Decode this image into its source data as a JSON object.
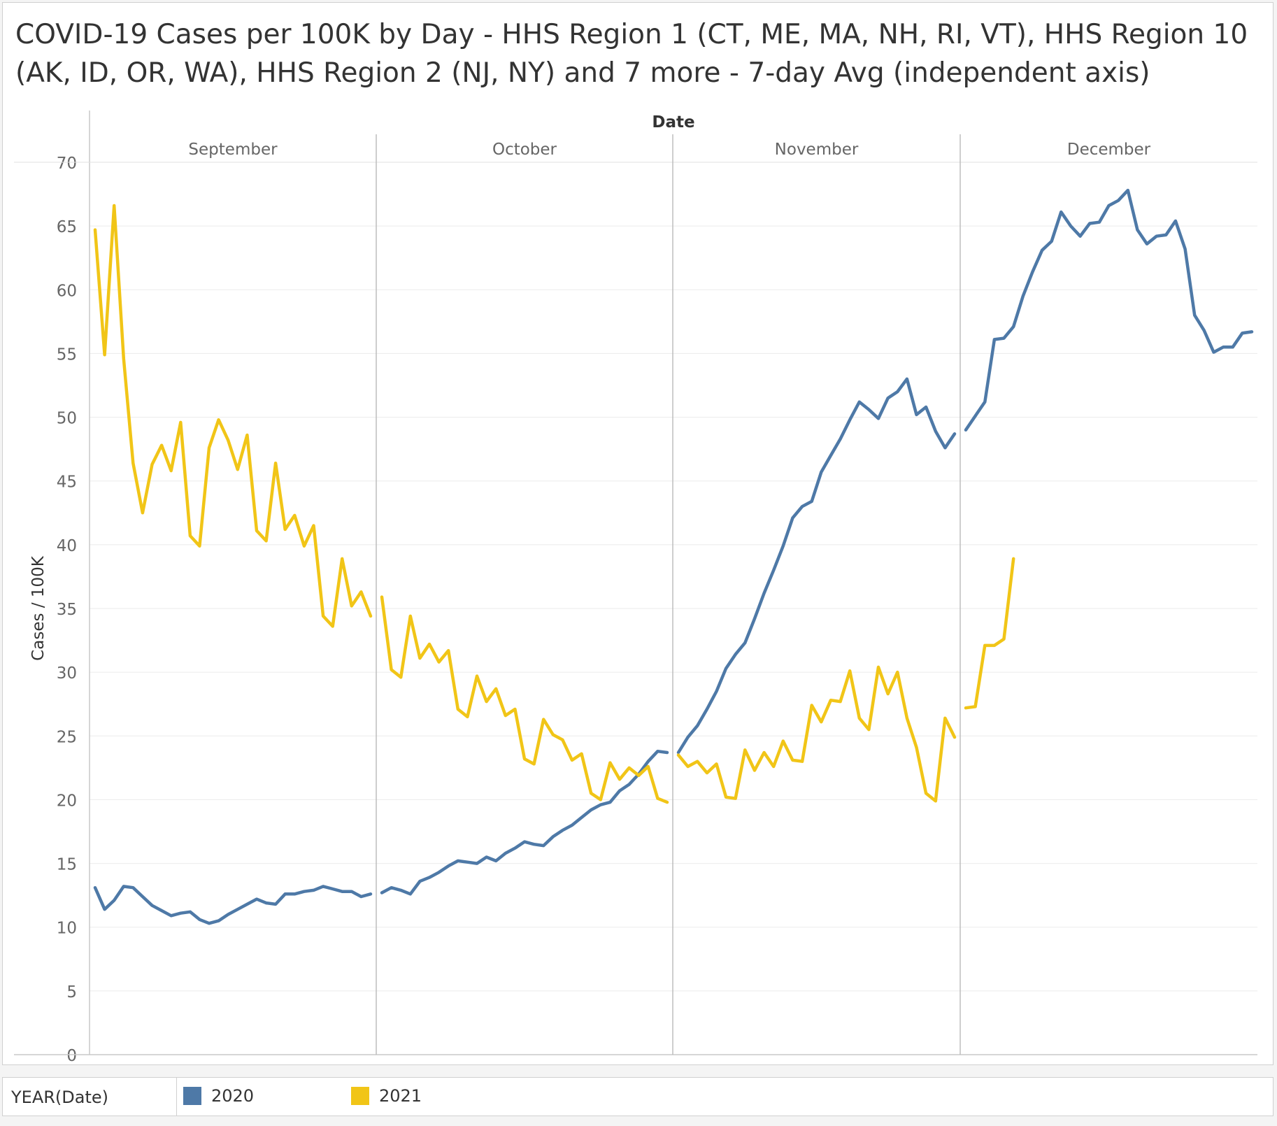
{
  "title": "COVID-19 Cases per 100K by Day - HHS Region 1 (CT, ME, MA, NH, RI, VT), HHS Region 10 (AK, ID, OR, WA), HHS Region 2 (NJ, NY) and 7 more - 7-day Avg (independent axis)",
  "legend": {
    "title": "YEAR(Date)",
    "items": [
      {
        "label": "2020",
        "color": "#4e79a7"
      },
      {
        "label": "2021",
        "color": "#f1c517"
      }
    ]
  },
  "chart_data": {
    "type": "line",
    "title": "COVID-19 Cases per 100K by Day - HHS Region 1 (CT, ME, MA, NH, RI, VT), HHS Region 10 (AK, ID, OR, WA), HHS Region 2 (NJ, NY) and 7 more - 7-day Avg (independent axis)",
    "xlabel": "Date",
    "ylabel": "Cases / 100K",
    "ylim": [
      0,
      70
    ],
    "yticks": [
      0,
      5,
      10,
      15,
      20,
      25,
      30,
      35,
      40,
      45,
      50,
      55,
      60,
      65,
      70
    ],
    "grid": true,
    "legend_position": "bottom",
    "months": [
      {
        "name": "September",
        "days": 30
      },
      {
        "name": "October",
        "days": 31
      },
      {
        "name": "November",
        "days": 30
      },
      {
        "name": "December",
        "days": 31
      }
    ],
    "series": [
      {
        "name": "2020",
        "color": "#4e79a7",
        "segments": [
          {
            "month": "September",
            "values": [
              13.1,
              11.4,
              12.1,
              13.2,
              13.1,
              12.4,
              11.7,
              11.3,
              10.9,
              11.1,
              11.2,
              10.6,
              10.3,
              10.5,
              11.0,
              11.4,
              11.8,
              12.2,
              11.9,
              11.8,
              12.6,
              12.6,
              12.8,
              12.9,
              13.2,
              13.0,
              12.8,
              12.8,
              12.4,
              12.6
            ]
          },
          {
            "month": "October",
            "values": [
              12.7,
              13.1,
              12.9,
              12.6,
              13.6,
              13.9,
              14.3,
              14.8,
              15.2,
              15.1,
              15.0,
              15.5,
              15.2,
              15.8,
              16.2,
              16.7,
              16.5,
              16.4,
              17.1,
              17.6,
              18.0,
              18.6,
              19.2,
              19.6,
              19.8,
              20.7,
              21.2,
              22.0,
              23.0,
              23.8,
              23.7
            ]
          },
          {
            "month": "November",
            "values": [
              23.7,
              24.9,
              25.8,
              27.1,
              28.5,
              30.3,
              31.4,
              32.3,
              34.2,
              36.2,
              38.0,
              39.9,
              42.1,
              43.0,
              43.4,
              45.7,
              47.0,
              48.3,
              49.8,
              51.2,
              50.6,
              49.9,
              51.5,
              52.0,
              53.0,
              50.2,
              50.8,
              48.9,
              47.6,
              48.7
            ]
          },
          {
            "month": "December",
            "values": [
              49.0,
              50.1,
              51.2,
              56.1,
              56.2,
              57.1,
              59.5,
              61.4,
              63.1,
              63.8,
              66.1,
              65.0,
              64.2,
              65.2,
              65.3,
              66.6,
              67.0,
              67.8,
              64.7,
              63.6,
              64.2,
              64.3,
              65.4,
              63.2,
              58.0,
              56.8,
              55.1,
              55.5,
              55.5,
              56.6,
              56.7
            ]
          }
        ]
      },
      {
        "name": "2021",
        "color": "#f1c517",
        "segments": [
          {
            "month": "September",
            "values": [
              64.7,
              54.9,
              66.6,
              54.6,
              46.4,
              42.5,
              46.3,
              47.8,
              45.8,
              49.6,
              40.7,
              39.9,
              47.6,
              49.8,
              48.2,
              45.9,
              48.6,
              41.1,
              40.3,
              46.4,
              41.2,
              42.3,
              39.9,
              41.5,
              34.4,
              33.6,
              38.9,
              35.2,
              36.3,
              34.4
            ]
          },
          {
            "month": "October",
            "values": [
              35.9,
              30.2,
              29.6,
              34.4,
              31.1,
              32.2,
              30.8,
              31.7,
              27.1,
              26.5,
              29.7,
              27.7,
              28.7,
              26.6,
              27.1,
              23.2,
              22.8,
              26.3,
              25.1,
              24.7,
              23.1,
              23.6,
              20.5,
              20.0,
              22.9,
              21.6,
              22.5,
              21.9,
              22.6,
              20.1,
              19.8
            ]
          },
          {
            "month": "November",
            "values": [
              23.5,
              22.6,
              23.0,
              22.1,
              22.8,
              20.2,
              20.1,
              23.9,
              22.3,
              23.7,
              22.6,
              24.6,
              23.1,
              23.0,
              27.4,
              26.1,
              27.8,
              27.7,
              30.1,
              26.4,
              25.5,
              30.4,
              28.3,
              30.0,
              26.4,
              24.1,
              20.5,
              19.9,
              26.4,
              24.9
            ]
          },
          {
            "month": "December",
            "values": [
              27.2,
              27.3,
              32.1,
              32.1,
              32.6,
              38.9
            ]
          }
        ]
      }
    ]
  }
}
